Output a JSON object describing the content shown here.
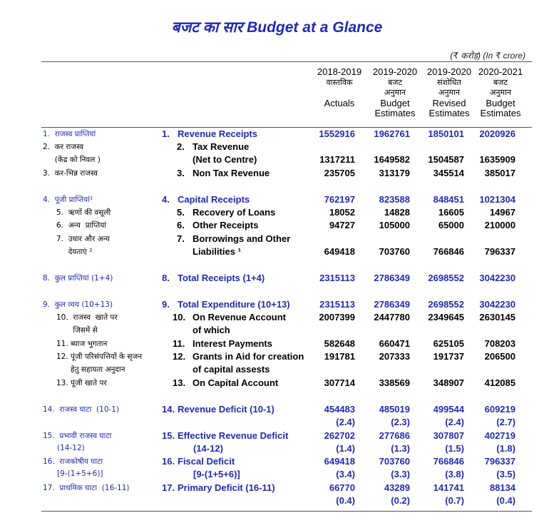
{
  "title": "बजट का सार Budget at a Glance",
  "unit": "(₹ करोड़) (In ₹ crore)",
  "columns": [
    {
      "hindi": [
        "2018-2019",
        "वास्तविक"
      ],
      "english": [
        "Actuals"
      ]
    },
    {
      "hindi": [
        "2019-2020",
        "बजट",
        "अनुमान"
      ],
      "english": [
        "Budget",
        "Estimates"
      ]
    },
    {
      "hindi": [
        "2019-2020",
        "संशोधित",
        "अनुमान"
      ],
      "english": [
        "Revised",
        "Estimates"
      ]
    },
    {
      "hindi": [
        "2020-2021",
        "बजट",
        "अनुमान"
      ],
      "english": [
        "Budget",
        "Estimates"
      ]
    }
  ],
  "rows": [
    {
      "hi": "1.  राजस्व प्राप्तियां",
      "hi_indent": 0,
      "en_num": "1.",
      "en": "Revenue Receipts",
      "en_indent": 0,
      "v": [
        "1552916",
        "1962761",
        "1850101",
        "2020926"
      ],
      "blue": true
    },
    {
      "hi": "2.  कर राजस्व",
      "hi_indent": 0,
      "en_num": "2.",
      "en": "Tax Revenue",
      "en_indent": 1,
      "v": [
        "",
        "",
        "",
        ""
      ],
      "blue": false
    },
    {
      "hi": "     (केंद्र को निवल )",
      "hi_indent": 0,
      "en_num": "",
      "en": "(Net to Centre)",
      "en_indent": 1,
      "v": [
        "1317211",
        "1649582",
        "1504587",
        "1635909"
      ],
      "blue": false
    },
    {
      "hi": "3.  कर-भिन्न राजस्व",
      "hi_indent": 0,
      "en_num": "3.",
      "en": "Non Tax Revenue",
      "en_indent": 1,
      "v": [
        "235705",
        "313179",
        "345514",
        "385017"
      ],
      "blue": false
    },
    {
      "hi": "4.  पूंजी प्राप्तियां¹",
      "hi_indent": 0,
      "en_num": "4.",
      "en": "Capital Receipts",
      "en_indent": 0,
      "v": [
        "762197",
        "823588",
        "848451",
        "1021304"
      ],
      "blue": true
    },
    {
      "hi": "5.  ऋणों की वसूली",
      "hi_indent": 1,
      "en_num": "5.",
      "en": "Recovery of Loans",
      "en_indent": 1,
      "v": [
        "18052",
        "14828",
        "16605",
        "14967"
      ],
      "blue": false
    },
    {
      "hi": "6.  अन्य  प्राप्तियां",
      "hi_indent": 1,
      "en_num": "6.",
      "en": "Other Receipts",
      "en_indent": 1,
      "v": [
        "94727",
        "105000",
        "65000",
        "210000"
      ],
      "blue": false
    },
    {
      "hi": "7.  उधार और अन्य",
      "hi_indent": 1,
      "en_num": "7.",
      "en": "Borrowings and Other",
      "en_indent": 1,
      "v": [
        "",
        "",
        "",
        ""
      ],
      "blue": false
    },
    {
      "hi": "     देयताएं ²",
      "hi_indent": 1,
      "en_num": "",
      "en": "Liabilities ¹",
      "en_indent": 1,
      "v": [
        "649418",
        "703760",
        "766846",
        "796337"
      ],
      "blue": false
    },
    {
      "hi": "8.  कुल प्राप्तियां (1+4)",
      "hi_indent": 0,
      "en_num": "8.",
      "en": "Total Receipts (1+4)",
      "en_indent": 0,
      "v": [
        "2315113",
        "2786349",
        "2698552",
        "3042230"
      ],
      "blue": true
    },
    {
      "hi": "9.  कुल व्यय (10+13)",
      "hi_indent": 0,
      "en_num": "9.",
      "en": "Total Expenditure (10+13)",
      "en_indent": 0,
      "v": [
        "2315113",
        "2786349",
        "2698552",
        "3042230"
      ],
      "blue": true
    },
    {
      "hi": "10.  राजस्व  खाते पर",
      "hi_indent": 1,
      "en_num": "10.",
      "en": "On Revenue Account",
      "en_indent": 1,
      "v": [
        "2007399",
        "2447780",
        "2349645",
        "2630145"
      ],
      "blue": false
    },
    {
      "hi": "       जिसमें से",
      "hi_indent": 1,
      "en_num": "",
      "en": "of which",
      "en_indent": 1,
      "v": [
        "",
        "",
        "",
        ""
      ],
      "blue": false
    },
    {
      "hi": "11. ब्याज भुगतान",
      "hi_indent": 1,
      "en_num": "11.",
      "en": "Interest Payments",
      "en_indent": 1,
      "v": [
        "582648",
        "660471",
        "625105",
        "708203"
      ],
      "blue": false
    },
    {
      "hi": "12. पूंजी परिसंपत्तियों के सृजन",
      "hi_indent": 1,
      "en_num": "12.",
      "en": "Grants in Aid for creation",
      "en_indent": 1,
      "v": [
        "191781",
        "207333",
        "191737",
        "206500"
      ],
      "blue": false
    },
    {
      "hi": "      हेतु सहायता अनुदान",
      "hi_indent": 1,
      "en_num": "",
      "en": "of capital assests",
      "en_indent": 1,
      "v": [
        "",
        "",
        "",
        ""
      ],
      "blue": false
    },
    {
      "hi": "13. पूंजी खाते पर",
      "hi_indent": 1,
      "en_num": "13.",
      "en": "On Capital Account",
      "en_indent": 1,
      "v": [
        "307714",
        "338569",
        "348907",
        "412085"
      ],
      "blue": false
    },
    {
      "hi": "14.  राजस्व घाटा  (10-1)",
      "hi_indent": 0,
      "en_num": "14.",
      "en": "Revenue Deficit (10-1)",
      "en_indent": 0,
      "v": [
        "454483",
        "485019",
        "499544",
        "609219"
      ],
      "blue": true
    },
    {
      "hi": "",
      "hi_indent": 0,
      "en_num": "",
      "en": "",
      "en_indent": 0,
      "v": [
        "(2.4)",
        "(2.3)",
        "(2.4)",
        "(2.7)"
      ],
      "blue": true
    },
    {
      "hi": "15.  प्रभावी राजस्व घाटा",
      "hi_indent": 0,
      "en_num": "15.",
      "en": "Effective Revenue Deficit",
      "en_indent": 0,
      "v": [
        "262702",
        "277686",
        "307807",
        "402719"
      ],
      "blue": true
    },
    {
      "hi": "      (14-12)",
      "hi_indent": 0,
      "en_num": "",
      "en": "(14-12)",
      "en_indent": 0,
      "v": [
        "(1.4)",
        "(1.3)",
        "(1.5)",
        "(1.8)"
      ],
      "blue": true
    },
    {
      "hi": "16.  राजकोषीय घाटा",
      "hi_indent": 0,
      "en_num": "16.",
      "en": "Fiscal Deficit",
      "en_indent": 0,
      "v": [
        "649418",
        "703760",
        "766846",
        "796337"
      ],
      "blue": true
    },
    {
      "hi": "      [9-(1+5+6)]",
      "hi_indent": 0,
      "en_num": "",
      "en": "[9-(1+5+6)]",
      "en_indent": 0,
      "v": [
        "(3.4)",
        "(3.3)",
        "(3.8)",
        "(3.5)"
      ],
      "blue": true
    },
    {
      "hi": "17.  प्राथमिक घाटा  (16-11)",
      "hi_indent": 0,
      "en_num": "17.",
      "en": "Primary Deficit (16-11)",
      "en_indent": 0,
      "v": [
        "66770",
        "43289",
        "141741",
        "88134"
      ],
      "blue": true
    },
    {
      "hi": "",
      "hi_indent": 0,
      "en_num": "",
      "en": "",
      "en_indent": 0,
      "v": [
        "(0.4)",
        "(0.2)",
        "(0.7)",
        "(0.4)"
      ],
      "blue": true
    }
  ]
}
